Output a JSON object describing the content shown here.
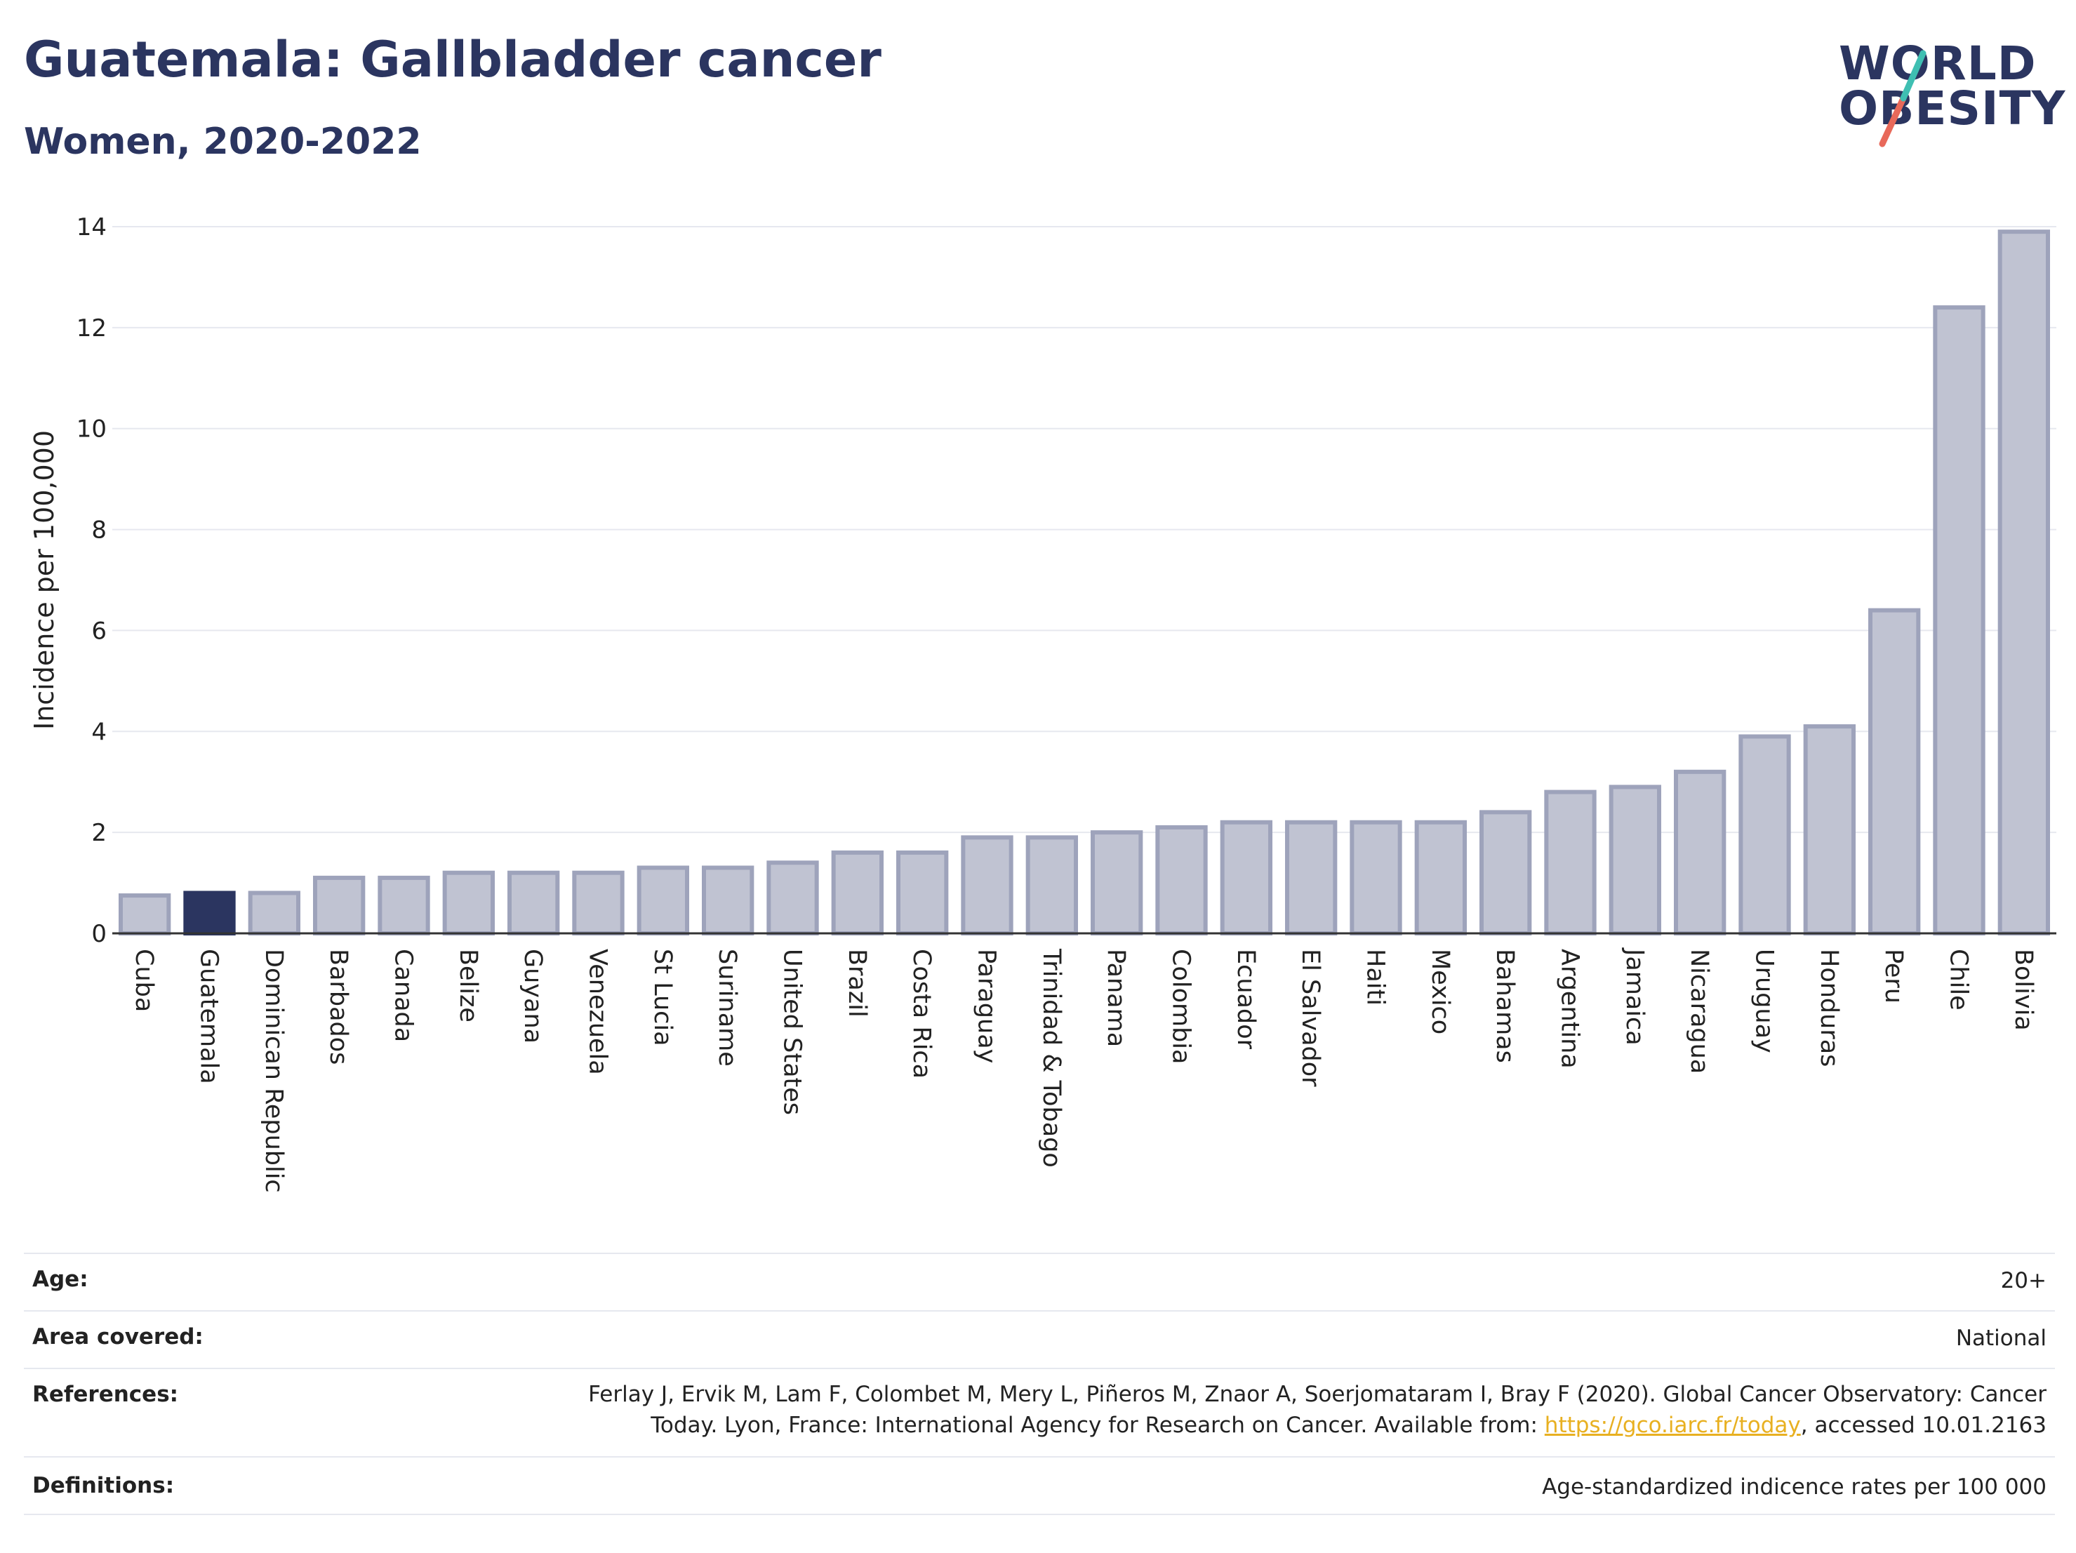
{
  "header": {
    "title": "Guatemala: Gallbladder cancer",
    "subtitle": "Women, 2020-2022"
  },
  "logo": {
    "line1": "WORLD",
    "line2": "OBESITY",
    "accent_colors": [
      "#3fbfb2",
      "#e8695a"
    ]
  },
  "colors": {
    "highlight_bar": "#2b3560",
    "default_bar_fill": "#c0c3d2",
    "default_bar_stroke": "#9ea3bb",
    "text": "#222222",
    "title": "#2b3560",
    "gridline": "#e6e8ef",
    "link": "#e8b021"
  },
  "chart_data": {
    "type": "bar",
    "ylabel": "Incidence per 100,000",
    "xlabel": "",
    "ylim": [
      0,
      14
    ],
    "yticks": [
      0,
      2,
      4,
      6,
      8,
      10,
      12,
      14
    ],
    "grid": true,
    "highlight": "Guatemala",
    "categories": [
      "Cuba",
      "Guatemala",
      "Dominican Republic",
      "Barbados",
      "Canada",
      "Belize",
      "Guyana",
      "Venezuela",
      "St Lucia",
      "Suriname",
      "United States",
      "Brazil",
      "Costa Rica",
      "Paraguay",
      "Trinidad & Tobago",
      "Panama",
      "Colombia",
      "Ecuador",
      "El Salvador",
      "Haiti",
      "Mexico",
      "Bahamas",
      "Argentina",
      "Jamaica",
      "Nicaragua",
      "Uruguay",
      "Honduras",
      "Peru",
      "Chile",
      "Bolivia"
    ],
    "values": [
      0.75,
      0.8,
      0.8,
      1.1,
      1.1,
      1.2,
      1.2,
      1.2,
      1.3,
      1.3,
      1.4,
      1.6,
      1.6,
      1.9,
      1.9,
      2.0,
      2.1,
      2.2,
      2.2,
      2.2,
      2.2,
      2.4,
      2.8,
      2.9,
      3.2,
      3.9,
      4.1,
      6.4,
      12.4,
      13.9
    ]
  },
  "meta": {
    "age_label": "Age:",
    "age_value": "20+",
    "area_label": "Area covered:",
    "area_value": "National",
    "references_label": "References:",
    "references_line1": "Ferlay J, Ervik M, Lam F, Colombet M, Mery L, Piñeros M, Znaor A, Soerjomataram I, Bray F (2020). Global Cancer Observatory: Cancer",
    "references_line2_pre": "Today. Lyon, France: International Agency for Research on Cancer. Available from: ",
    "references_link": "https://gco.iarc.fr/today",
    "references_line2_post": ", accessed 10.01.2163",
    "definitions_label": "Definitions:",
    "definitions_value": "Age-standardized indicence rates per 100 000"
  }
}
